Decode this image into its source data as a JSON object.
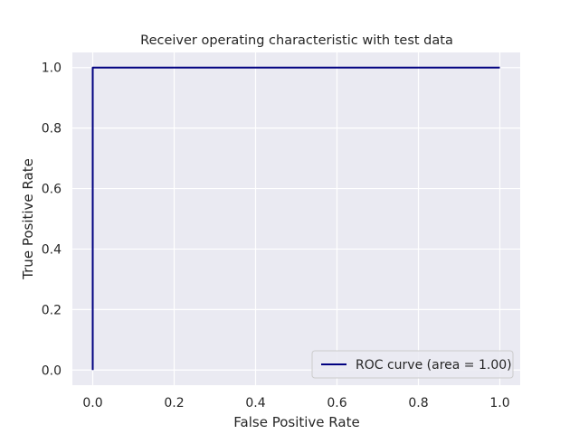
{
  "chart_data": {
    "type": "line",
    "title": "Receiver operating characteristic with test data",
    "xlabel": "False Positive Rate",
    "ylabel": "True Positive Rate",
    "xlim": [
      -0.05,
      1.05
    ],
    "ylim": [
      -0.05,
      1.05
    ],
    "xticks": [
      "0.0",
      "0.2",
      "0.4",
      "0.6",
      "0.8",
      "1.0"
    ],
    "yticks": [
      "0.0",
      "0.2",
      "0.4",
      "0.6",
      "0.8",
      "1.0"
    ],
    "grid": true,
    "legend_position": "lower-right",
    "series": [
      {
        "name": "ROC curve (area = 1.00)",
        "color": "#000080",
        "x": [
          0.0,
          0.0,
          1.0
        ],
        "y": [
          0.0,
          1.0,
          1.0
        ]
      }
    ]
  },
  "colors": {
    "plot_background": "#eaeaf2",
    "grid": "#ffffff",
    "text": "#262626"
  }
}
